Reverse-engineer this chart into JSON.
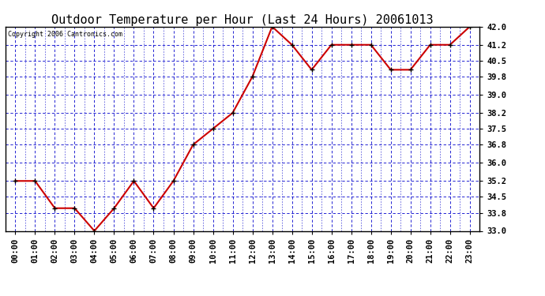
{
  "title": "Outdoor Temperature per Hour (Last 24 Hours) 20061013",
  "copyright": "Copyright 2006 Cantronics.com",
  "hours": [
    "00:00",
    "01:00",
    "02:00",
    "03:00",
    "04:00",
    "05:00",
    "06:00",
    "07:00",
    "08:00",
    "09:00",
    "10:00",
    "11:00",
    "12:00",
    "13:00",
    "14:00",
    "15:00",
    "16:00",
    "17:00",
    "18:00",
    "19:00",
    "20:00",
    "21:00",
    "22:00",
    "23:00"
  ],
  "temperatures": [
    35.2,
    35.2,
    34.0,
    34.0,
    33.0,
    34.0,
    35.2,
    34.0,
    35.2,
    36.8,
    37.5,
    38.2,
    39.8,
    42.0,
    41.2,
    40.1,
    41.2,
    41.2,
    41.2,
    40.1,
    40.1,
    41.2,
    41.2,
    42.0
  ],
  "ylim_min": 33.0,
  "ylim_max": 42.0,
  "yticks": [
    33.0,
    33.8,
    34.5,
    35.2,
    36.0,
    36.8,
    37.5,
    38.2,
    39.0,
    39.8,
    40.5,
    41.2,
    42.0
  ],
  "line_color": "#cc0000",
  "marker_color": "#000000",
  "grid_color": "#0000cc",
  "bg_color": "#ffffff",
  "plot_bg_color": "#ffffff",
  "title_fontsize": 11,
  "copyright_fontsize": 6,
  "tick_fontsize": 7.5,
  "fig_width": 6.9,
  "fig_height": 3.75
}
